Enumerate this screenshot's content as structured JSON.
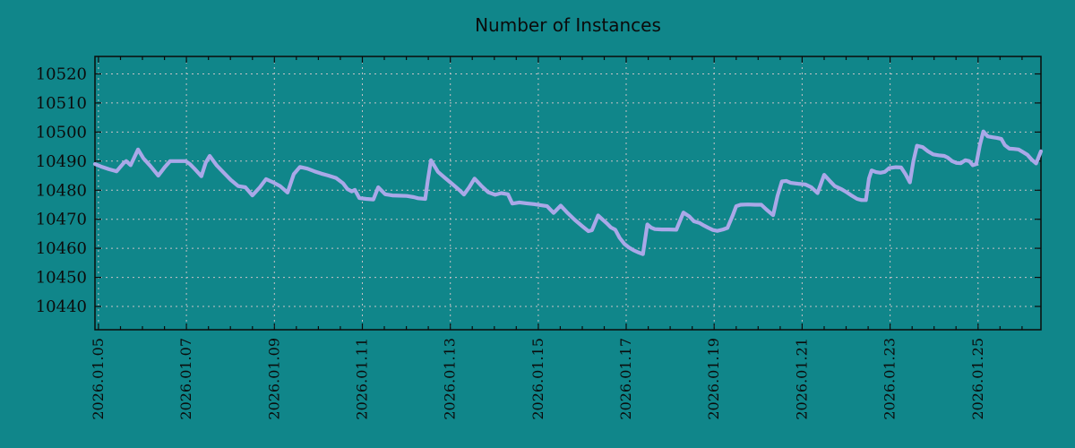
{
  "colors": {
    "background": "#10868a",
    "line": "#aaa8e8",
    "grid": "#c6c2c6",
    "border": "#0b0b0b",
    "text": "#0b0b0b"
  },
  "chart_data": {
    "type": "line",
    "title": "Number of Instances",
    "xlabel": "",
    "ylabel": "",
    "x_unit": "days since 2026.01.05",
    "xlim": [
      -0.08,
      21.43
    ],
    "ylim": [
      10432,
      10526
    ],
    "grid": true,
    "legend": false,
    "y_ticks": [
      10440,
      10450,
      10460,
      10470,
      10480,
      10490,
      10500,
      10510,
      10520
    ],
    "x_minor_tick_step": 0.5,
    "x_ticks": [
      {
        "day": 0,
        "label": "2026.01.05"
      },
      {
        "day": 2,
        "label": "2026.01.07"
      },
      {
        "day": 4,
        "label": "2026.01.09"
      },
      {
        "day": 6,
        "label": "2026.01.11"
      },
      {
        "day": 8,
        "label": "2026.01.13"
      },
      {
        "day": 10,
        "label": "2026.01.15"
      },
      {
        "day": 12,
        "label": "2026.01.17"
      },
      {
        "day": 14,
        "label": "2026.01.19"
      },
      {
        "day": 16,
        "label": "2026.01.21"
      },
      {
        "day": 18,
        "label": "2026.01.23"
      },
      {
        "day": 20,
        "label": "2026.01.25"
      }
    ],
    "series": [
      {
        "name": "instances",
        "points": [
          [
            -0.08,
            10489
          ],
          [
            0.08,
            10488
          ],
          [
            0.24,
            10487.2
          ],
          [
            0.41,
            10486.5
          ],
          [
            0.57,
            10489.3
          ],
          [
            0.63,
            10490
          ],
          [
            0.73,
            10488.6
          ],
          [
            0.9,
            10494
          ],
          [
            1.02,
            10491
          ],
          [
            1.18,
            10488.3
          ],
          [
            1.36,
            10485
          ],
          [
            1.51,
            10488
          ],
          [
            1.63,
            10490
          ],
          [
            1.81,
            10490
          ],
          [
            1.98,
            10490
          ],
          [
            2.08,
            10489
          ],
          [
            2.18,
            10487.4
          ],
          [
            2.34,
            10484.8
          ],
          [
            2.44,
            10489.5
          ],
          [
            2.53,
            10491.8
          ],
          [
            2.69,
            10488.5
          ],
          [
            2.85,
            10486
          ],
          [
            3.01,
            10483.5
          ],
          [
            3.18,
            10481.4
          ],
          [
            3.34,
            10481
          ],
          [
            3.5,
            10478.2
          ],
          [
            3.67,
            10481
          ],
          [
            3.81,
            10483.8
          ],
          [
            3.97,
            10482.7
          ],
          [
            4.13,
            10481.4
          ],
          [
            4.3,
            10479.2
          ],
          [
            4.44,
            10485.5
          ],
          [
            4.58,
            10488
          ],
          [
            4.75,
            10487.4
          ],
          [
            4.91,
            10486.5
          ],
          [
            5.07,
            10485.7
          ],
          [
            5.23,
            10485
          ],
          [
            5.4,
            10484.2
          ],
          [
            5.56,
            10482.4
          ],
          [
            5.66,
            10480.4
          ],
          [
            5.76,
            10479.6
          ],
          [
            5.83,
            10480.1
          ],
          [
            5.93,
            10477.3
          ],
          [
            6.09,
            10477
          ],
          [
            6.25,
            10476.8
          ],
          [
            6.36,
            10481
          ],
          [
            6.52,
            10478.6
          ],
          [
            6.68,
            10478.2
          ],
          [
            6.84,
            10478.1
          ],
          [
            7.01,
            10478
          ],
          [
            7.17,
            10477.6
          ],
          [
            7.27,
            10477.2
          ],
          [
            7.43,
            10477
          ],
          [
            7.49,
            10483.5
          ],
          [
            7.56,
            10490.3
          ],
          [
            7.72,
            10486.3
          ],
          [
            7.88,
            10484.2
          ],
          [
            8.04,
            10482.2
          ],
          [
            8.21,
            10480
          ],
          [
            8.31,
            10478.5
          ],
          [
            8.43,
            10481
          ],
          [
            8.55,
            10484
          ],
          [
            8.7,
            10481.6
          ],
          [
            8.86,
            10479.3
          ],
          [
            9.02,
            10478.4
          ],
          [
            9.16,
            10479
          ],
          [
            9.31,
            10478.6
          ],
          [
            9.41,
            10475.4
          ],
          [
            9.57,
            10475.8
          ],
          [
            9.73,
            10475.5
          ],
          [
            9.9,
            10475.2
          ],
          [
            10.06,
            10474.8
          ],
          [
            10.2,
            10474.5
          ],
          [
            10.35,
            10472.2
          ],
          [
            10.51,
            10474.7
          ],
          [
            10.67,
            10472.1
          ],
          [
            10.83,
            10469.8
          ],
          [
            11,
            10467.6
          ],
          [
            11.14,
            10465.9
          ],
          [
            11.22,
            10466.2
          ],
          [
            11.36,
            10471.3
          ],
          [
            11.55,
            10468.7
          ],
          [
            11.65,
            10467.2
          ],
          [
            11.75,
            10466.4
          ],
          [
            11.85,
            10463.6
          ],
          [
            11.96,
            10461.5
          ],
          [
            12.06,
            10460.3
          ],
          [
            12.16,
            10459.4
          ],
          [
            12.26,
            10458.7
          ],
          [
            12.38,
            10458
          ],
          [
            12.48,
            10468.2
          ],
          [
            12.57,
            10467.1
          ],
          [
            12.65,
            10466.6
          ],
          [
            12.81,
            10466.5
          ],
          [
            12.97,
            10466.5
          ],
          [
            13.14,
            10466.4
          ],
          [
            13.3,
            10472.3
          ],
          [
            13.44,
            10470.9
          ],
          [
            13.54,
            10469.3
          ],
          [
            13.67,
            10468.7
          ],
          [
            13.77,
            10467.8
          ],
          [
            13.87,
            10467
          ],
          [
            13.97,
            10466.3
          ],
          [
            14.07,
            10466
          ],
          [
            14.2,
            10466.5
          ],
          [
            14.3,
            10467
          ],
          [
            14.42,
            10471.3
          ],
          [
            14.5,
            10474.5
          ],
          [
            14.6,
            10475
          ],
          [
            14.77,
            10475.1
          ],
          [
            14.93,
            10475
          ],
          [
            15.07,
            10475
          ],
          [
            15.19,
            10473.3
          ],
          [
            15.34,
            10471.4
          ],
          [
            15.44,
            10478
          ],
          [
            15.54,
            10483
          ],
          [
            15.64,
            10483.2
          ],
          [
            15.74,
            10482.5
          ],
          [
            15.91,
            10482.2
          ],
          [
            16.07,
            10482
          ],
          [
            16.21,
            10481
          ],
          [
            16.35,
            10479
          ],
          [
            16.5,
            10485.3
          ],
          [
            16.64,
            10483
          ],
          [
            16.74,
            10481.4
          ],
          [
            16.9,
            10480.3
          ],
          [
            17.01,
            10479.3
          ],
          [
            17.11,
            10478.3
          ],
          [
            17.25,
            10477
          ],
          [
            17.35,
            10476.6
          ],
          [
            17.45,
            10476.6
          ],
          [
            17.52,
            10484
          ],
          [
            17.58,
            10486.8
          ],
          [
            17.68,
            10486.2
          ],
          [
            17.78,
            10486
          ],
          [
            17.88,
            10486.3
          ],
          [
            17.98,
            10487.6
          ],
          [
            18.13,
            10487.9
          ],
          [
            18.25,
            10487.8
          ],
          [
            18.35,
            10485.5
          ],
          [
            18.45,
            10482.7
          ],
          [
            18.53,
            10490
          ],
          [
            18.61,
            10495.3
          ],
          [
            18.74,
            10494.8
          ],
          [
            18.86,
            10493.4
          ],
          [
            18.98,
            10492.3
          ],
          [
            19.1,
            10492
          ],
          [
            19.23,
            10491.8
          ],
          [
            19.31,
            10491.2
          ],
          [
            19.41,
            10490
          ],
          [
            19.51,
            10489.4
          ],
          [
            19.61,
            10489.3
          ],
          [
            19.71,
            10490.3
          ],
          [
            19.8,
            10490
          ],
          [
            19.88,
            10488.6
          ],
          [
            19.96,
            10489
          ],
          [
            20.04,
            10495.5
          ],
          [
            20.12,
            10500.2
          ],
          [
            20.22,
            10498.5
          ],
          [
            20.33,
            10498.2
          ],
          [
            20.43,
            10498
          ],
          [
            20.53,
            10497.6
          ],
          [
            20.61,
            10495.5
          ],
          [
            20.71,
            10494.3
          ],
          [
            20.81,
            10494.2
          ],
          [
            20.92,
            10494
          ],
          [
            21.02,
            10493.1
          ],
          [
            21.12,
            10492.2
          ],
          [
            21.22,
            10490.5
          ],
          [
            21.32,
            10489.2
          ],
          [
            21.43,
            10493.4
          ]
        ]
      }
    ]
  }
}
